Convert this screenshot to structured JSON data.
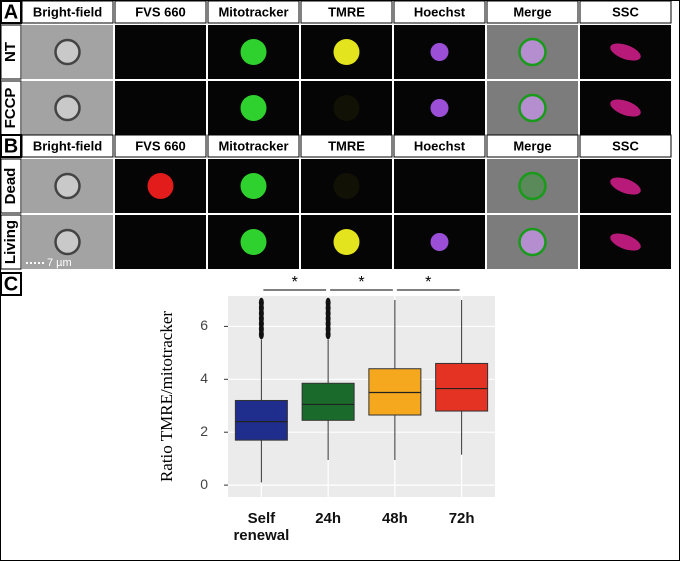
{
  "panels": {
    "A": {
      "letter": "A",
      "headers": [
        "Bright-field",
        "FVS 660",
        "Mitotracker",
        "TMRE",
        "Hoechst",
        "Merge",
        "SSC"
      ],
      "rows": [
        "NT",
        "FCCP"
      ]
    },
    "B": {
      "letter": "B",
      "headers": [
        "Bright-field",
        "FVS 660",
        "Mitotracker",
        "TMRE",
        "Hoechst",
        "Merge",
        "SSC"
      ],
      "rows": [
        "Dead",
        "Living"
      ]
    },
    "C": {
      "letter": "C"
    },
    "scale_bar": "7 µm"
  },
  "chart_data": {
    "type": "box",
    "y_label": "Ratio TMRE/mitotracker",
    "categories": [
      "Self renewal",
      "24h",
      "48h",
      "72h"
    ],
    "boxes": [
      {
        "low": 0.1,
        "q1": 1.7,
        "median": 2.4,
        "q3": 3.2,
        "high": 5.5,
        "outliers": [
          5.7,
          5.9,
          6.1,
          6.3,
          6.5,
          6.7,
          6.9
        ],
        "color": "#1f2d8c"
      },
      {
        "low": 0.95,
        "q1": 2.45,
        "median": 3.05,
        "q3": 3.85,
        "high": 5.5,
        "outliers": [
          5.7,
          5.9,
          6.1,
          6.3,
          6.5,
          6.7,
          6.9
        ],
        "color": "#1a6b2b"
      },
      {
        "low": 0.95,
        "q1": 2.65,
        "median": 3.5,
        "q3": 4.4,
        "high": 7.0,
        "outliers": [],
        "color": "#f5a81d"
      },
      {
        "low": 1.15,
        "q1": 2.8,
        "median": 3.65,
        "q3": 4.6,
        "high": 7.0,
        "outliers": [],
        "color": "#e53323"
      }
    ],
    "significance": [
      {
        "from": 0,
        "to": 1,
        "label": "*"
      },
      {
        "from": 1,
        "to": 2,
        "label": "*"
      },
      {
        "from": 2,
        "to": 3,
        "label": "*"
      }
    ],
    "ylim": [
      -0.45,
      7.15
    ],
    "yticks": [
      0,
      2,
      4,
      6
    ],
    "grid": true,
    "background": "#ebebeb"
  }
}
